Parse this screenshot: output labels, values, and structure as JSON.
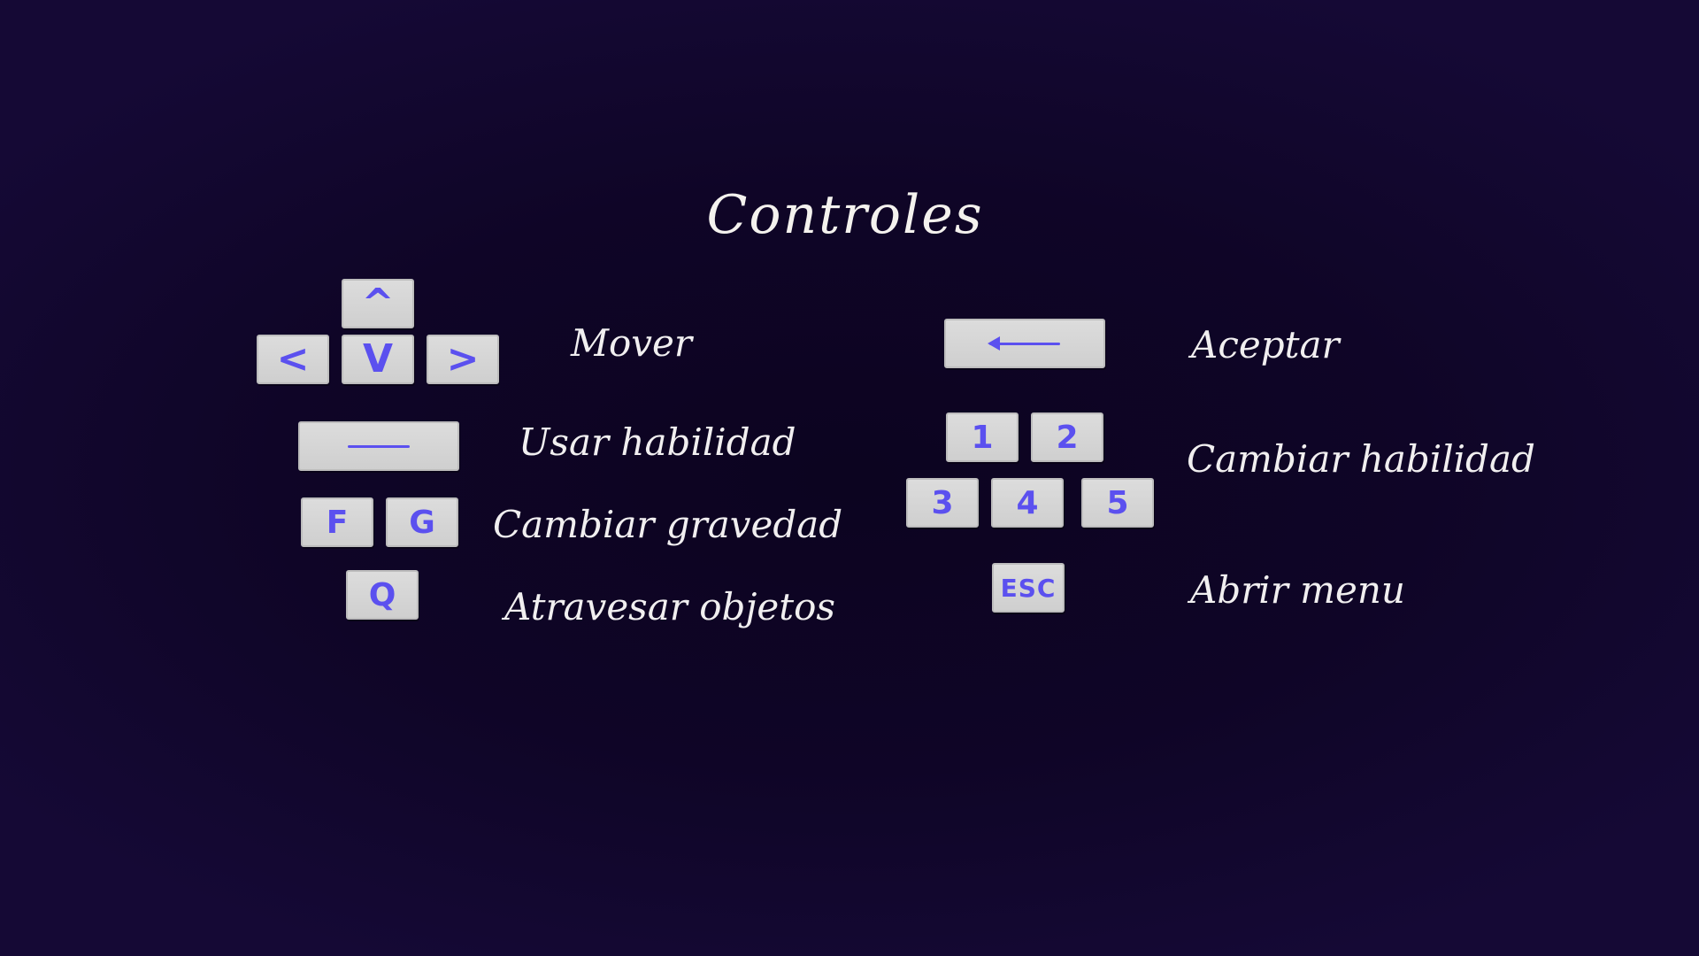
{
  "screen": {
    "title": "Controles"
  },
  "keys": {
    "up": "^",
    "left": "<",
    "down": "V",
    "right": ">",
    "f": "F",
    "g": "G",
    "q": "Q",
    "one": "1",
    "two": "2",
    "three": "3",
    "four": "4",
    "five": "5",
    "esc": "ESC"
  },
  "actions": {
    "move": "Mover",
    "use_ability": "Usar habilidad",
    "change_gravity": "Cambiar gravedad",
    "pass_through": "Atravesar objetos",
    "accept": "Aceptar",
    "change_ability": "Cambiar habilidad",
    "open_menu": "Abrir menu"
  },
  "icons": {
    "space": "spacebar-line-icon",
    "enter": "left-arrow-icon"
  },
  "colors": {
    "background": "#10062a",
    "key_face": "#d6d6d6",
    "key_glyph": "#5b50ef",
    "label_text": "#f1eff0"
  }
}
